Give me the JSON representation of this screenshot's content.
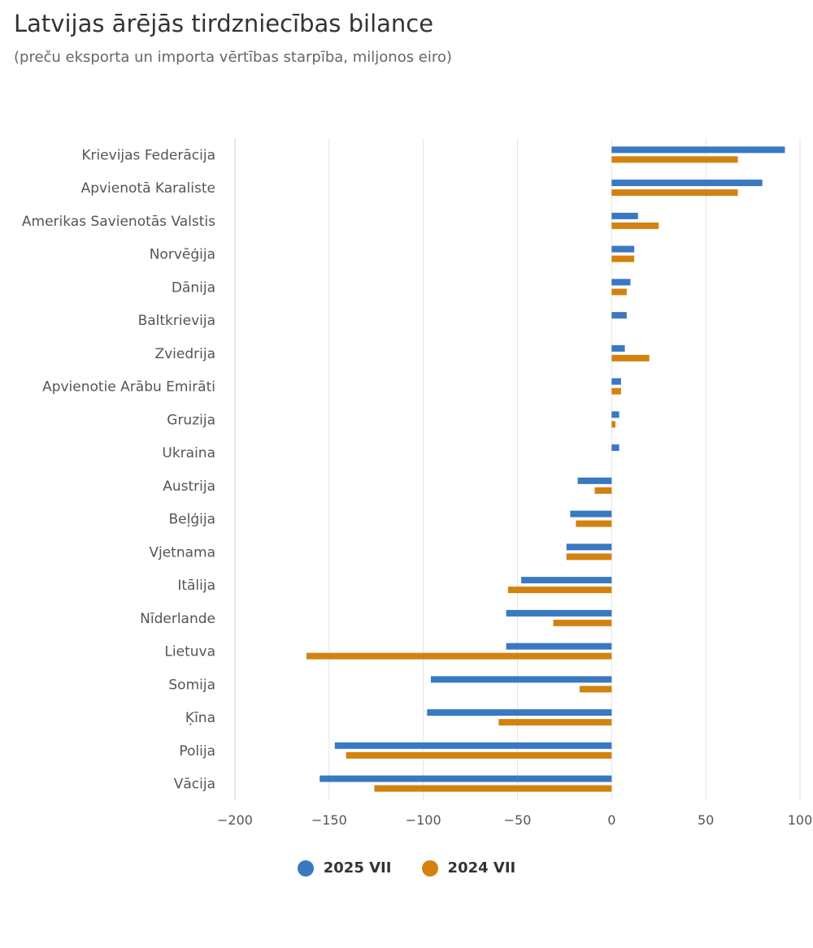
{
  "chart_data": {
    "type": "bar",
    "orientation": "horizontal",
    "title": "Latvijas ārējās tirdzniecības bilance",
    "subtitle": "(preču eksporta un importa vērtības starpība, miljonos eiro)",
    "categories": [
      "Krievijas Federācija",
      "Apvienotā Karaliste",
      "Amerikas Savienotās Valstis",
      "Norvēģija",
      "Dānija",
      "Baltkrievija",
      "Zviedrija",
      "Apvienotie Arābu Emirāti",
      "Gruzija",
      "Ukraina",
      "Austrija",
      "Beļģija",
      "Vjetnama",
      "Itālija",
      "Nīderlande",
      "Lietuva",
      "Somija",
      "Ķīna",
      "Polija",
      "Vācija"
    ],
    "series": [
      {
        "name": "2025 VII",
        "color": "#3a78c2",
        "values": [
          92,
          80,
          14,
          12,
          10,
          8,
          7,
          5,
          4,
          4,
          -18,
          -22,
          -24,
          -48,
          -56,
          -56,
          -96,
          -98,
          -147,
          -155
        ]
      },
      {
        "name": "2024 VII",
        "color": "#d4820f",
        "values": [
          67,
          67,
          25,
          12,
          8,
          0,
          20,
          5,
          2,
          0,
          -9,
          -19,
          -24,
          -55,
          -31,
          -162,
          -17,
          -60,
          -141,
          -126
        ]
      }
    ],
    "xlim": [
      -200,
      100
    ],
    "xticks": [
      -200,
      -150,
      -100,
      -50,
      0,
      50,
      100
    ],
    "xtick_labels": [
      "−200",
      "−150",
      "−100",
      "−50",
      "0",
      "50",
      "100"
    ],
    "grid": true,
    "legend_position": "bottom-center"
  }
}
